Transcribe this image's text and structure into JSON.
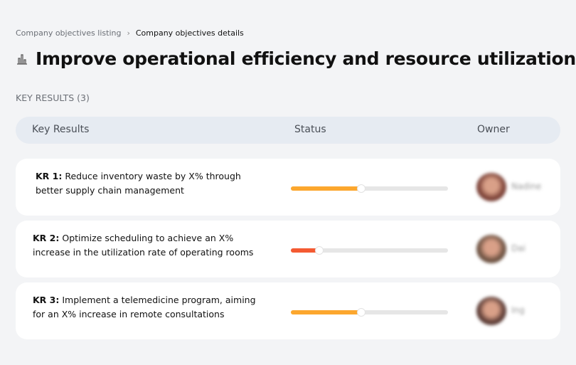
{
  "breadcrumb": {
    "parent": "Company objectives listing",
    "current": "Company objectives details"
  },
  "page_title": "Improve operational efficiency and resource utilization",
  "key_results_count_label": "KEY RESULTS (3)",
  "table_header": {
    "key_results": "Key Results",
    "status": "Status",
    "owner": "Owner"
  },
  "key_results": [
    {
      "id": "KR 1:",
      "text": "Reduce inventory waste by X% through better supply chain management",
      "progress_percent": 45,
      "color": "#fca72e",
      "owner": "Nadine",
      "avatar_color": "#7a4036"
    },
    {
      "id": "KR 2:",
      "text": "Optimize scheduling to achieve an X% increase in the utilization rate of operating rooms",
      "progress_percent": 18,
      "color": "#f45a32",
      "owner": "Dai",
      "avatar_color": "#6b5040"
    },
    {
      "id": "KR 3:",
      "text": "Implement a telemedicine program, aiming for an X% increase in remote consultations",
      "progress_percent": 45,
      "color": "#fca72e",
      "owner": "Ing",
      "avatar_color": "#5a3a34"
    }
  ]
}
